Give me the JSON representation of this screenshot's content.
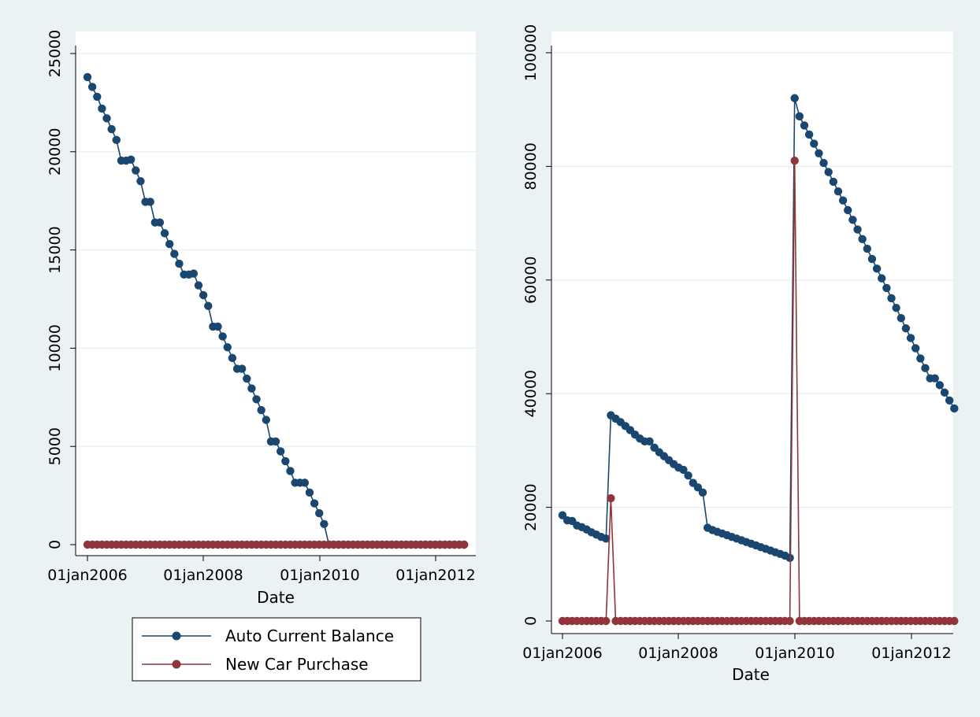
{
  "colors": {
    "background": "#eaf2f3",
    "plot_region": "#ffffff",
    "grid": "#eaf2f3",
    "auto_balance": "#1a476f",
    "new_car": "#90353b",
    "axis": "#000000"
  },
  "legend": {
    "placement": "bottom-left, below left panel",
    "items": [
      {
        "label": "Auto Current Balance",
        "color": "#1a476f"
      },
      {
        "label": "New Car Purchase",
        "color": "#90353b"
      }
    ]
  },
  "chart_data": [
    {
      "type": "line",
      "panel": "left",
      "xlabel": "Date",
      "ylabel": "",
      "x_axis_type": "date (monthly)",
      "x_ticks": [
        "01jan2006",
        "01jan2008",
        "01jan2010",
        "01jan2012"
      ],
      "y_ticks": [
        "0",
        "5000",
        "10000",
        "15000",
        "20000",
        "25000"
      ],
      "ylim": [
        0,
        25000
      ],
      "grid": true,
      "start_month": "2006-01",
      "series": [
        {
          "name": "Auto Current Balance",
          "color": "#1a476f",
          "values": [
            23800,
            23300,
            22800,
            22200,
            21700,
            21150,
            20600,
            19550,
            19550,
            19600,
            19050,
            18500,
            17450,
            17450,
            16400,
            16400,
            15850,
            15300,
            14800,
            14300,
            13750,
            13750,
            13800,
            13200,
            12700,
            12150,
            11100,
            11100,
            10600,
            10050,
            9500,
            8950,
            8950,
            8450,
            7950,
            7400,
            6850,
            6350,
            5250,
            5250,
            4750,
            4250,
            3750,
            3150,
            3150,
            3150,
            2650,
            2100,
            1600,
            1050,
            0,
            0,
            0,
            0,
            0,
            0,
            0,
            0,
            0,
            0,
            0,
            0,
            0,
            0,
            0,
            0,
            0,
            0,
            0,
            0,
            0,
            0,
            0,
            0,
            0,
            0,
            0,
            0,
            0
          ]
        },
        {
          "name": "New Car Purchase",
          "color": "#90353b",
          "values": [
            0,
            0,
            0,
            0,
            0,
            0,
            0,
            0,
            0,
            0,
            0,
            0,
            0,
            0,
            0,
            0,
            0,
            0,
            0,
            0,
            0,
            0,
            0,
            0,
            0,
            0,
            0,
            0,
            0,
            0,
            0,
            0,
            0,
            0,
            0,
            0,
            0,
            0,
            0,
            0,
            0,
            0,
            0,
            0,
            0,
            0,
            0,
            0,
            0,
            0,
            0,
            0,
            0,
            0,
            0,
            0,
            0,
            0,
            0,
            0,
            0,
            0,
            0,
            0,
            0,
            0,
            0,
            0,
            0,
            0,
            0,
            0,
            0,
            0,
            0,
            0,
            0,
            0,
            0
          ]
        }
      ]
    },
    {
      "type": "line",
      "panel": "right",
      "xlabel": "Date",
      "ylabel": "",
      "x_axis_type": "date (monthly)",
      "x_ticks": [
        "01jan2006",
        "01jan2008",
        "01jan2010",
        "01jan2012"
      ],
      "y_ticks": [
        "0",
        "20000",
        "40000",
        "60000",
        "80000",
        "100000"
      ],
      "ylim": [
        0,
        100000
      ],
      "grid": true,
      "start_month": "2006-01",
      "series": [
        {
          "name": "Auto Current Balance",
          "color": "#1a476f",
          "values": [
            18600,
            17700,
            17600,
            16800,
            16500,
            16100,
            15600,
            15200,
            14800,
            14500,
            36200,
            35600,
            35000,
            34300,
            33600,
            32800,
            32100,
            31600,
            31600,
            30500,
            29700,
            29000,
            28300,
            27600,
            27000,
            26600,
            25600,
            24300,
            23500,
            22600,
            16400,
            16000,
            15700,
            15400,
            15100,
            14800,
            14500,
            14200,
            13900,
            13600,
            13300,
            13000,
            12700,
            12400,
            12100,
            11800,
            11500,
            11100,
            92000,
            88800,
            87200,
            85600,
            84000,
            82300,
            80600,
            79000,
            77300,
            75600,
            74000,
            72300,
            70600,
            68900,
            67200,
            65500,
            63700,
            62000,
            60300,
            58600,
            56800,
            55100,
            53300,
            51500,
            49800,
            48000,
            46200,
            44500,
            42700,
            42700,
            41500,
            40200,
            38800,
            37400
          ]
        },
        {
          "name": "New Car Purchase",
          "color": "#90353b",
          "values": [
            0,
            0,
            0,
            0,
            0,
            0,
            0,
            0,
            0,
            0,
            21600,
            0,
            0,
            0,
            0,
            0,
            0,
            0,
            0,
            0,
            0,
            0,
            0,
            0,
            0,
            0,
            0,
            0,
            0,
            0,
            0,
            0,
            0,
            0,
            0,
            0,
            0,
            0,
            0,
            0,
            0,
            0,
            0,
            0,
            0,
            0,
            0,
            0,
            81000,
            0,
            0,
            0,
            0,
            0,
            0,
            0,
            0,
            0,
            0,
            0,
            0,
            0,
            0,
            0,
            0,
            0,
            0,
            0,
            0,
            0,
            0,
            0,
            0,
            0,
            0,
            0,
            0,
            0,
            0,
            0,
            0,
            0
          ]
        }
      ]
    }
  ]
}
